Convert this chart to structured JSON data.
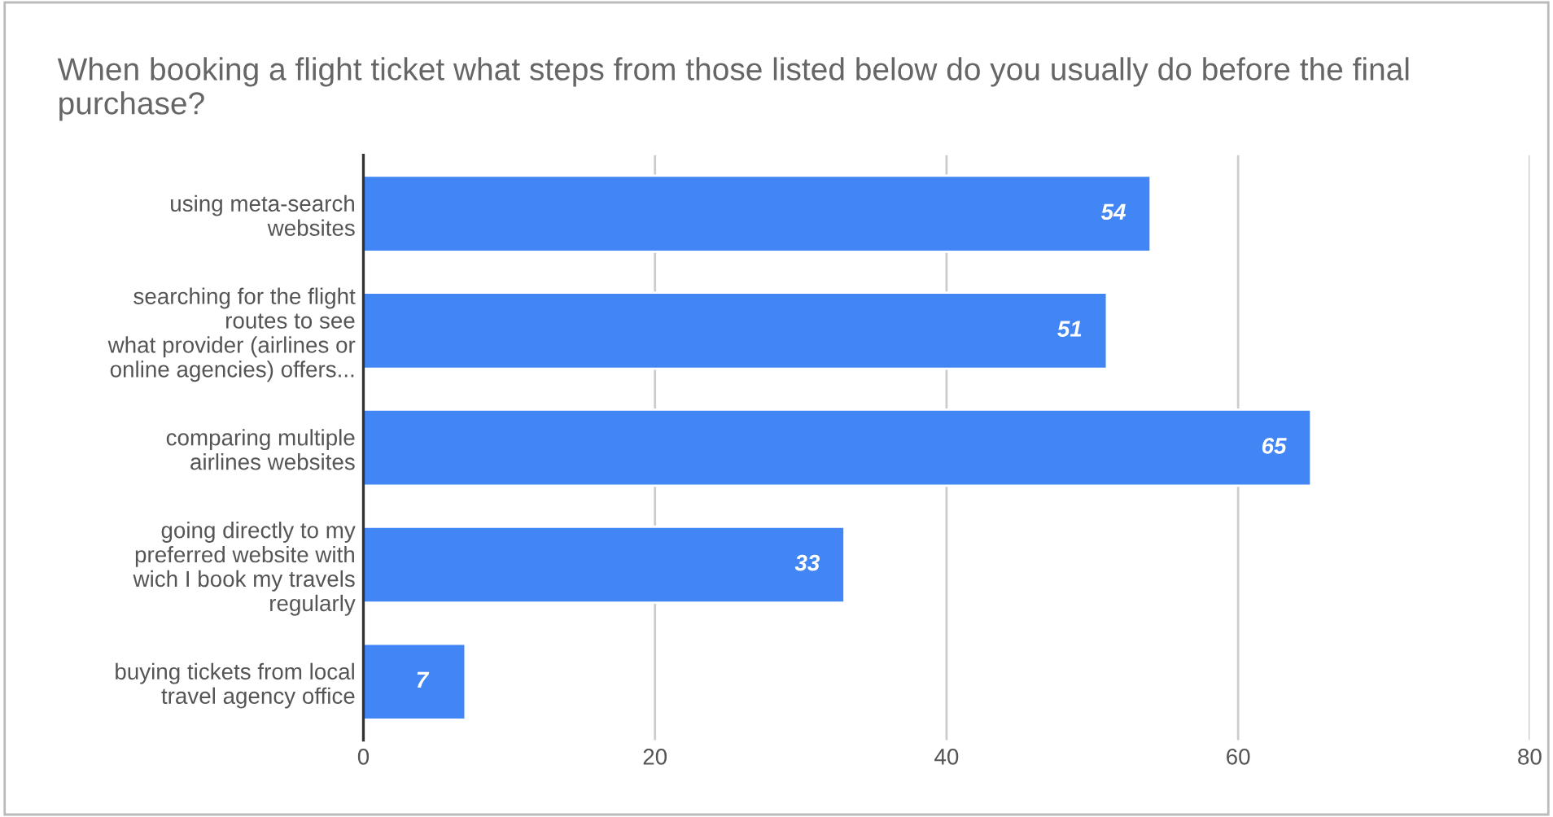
{
  "chart_data": {
    "type": "bar",
    "orientation": "horizontal",
    "title": "When booking a flight ticket what steps from those listed below do you usually do before the final purchase?",
    "categories": [
      "using meta-search\nwebsites",
      "searching for the flight\nroutes to see\nwhat provider (airlines or\nonline agencies) offers...",
      "comparing multiple\nairlines websites",
      "going directly to my\npreferred website with\nwich I book my travels\nregularly",
      "buying tickets from local\ntravel agency office"
    ],
    "values": [
      54,
      51,
      65,
      33,
      7
    ],
    "color": "#4285f4",
    "xlim": [
      0,
      80
    ],
    "xticks": [
      0,
      20,
      40,
      60,
      80
    ],
    "grid": "x",
    "data_labels": true,
    "legend": false
  }
}
